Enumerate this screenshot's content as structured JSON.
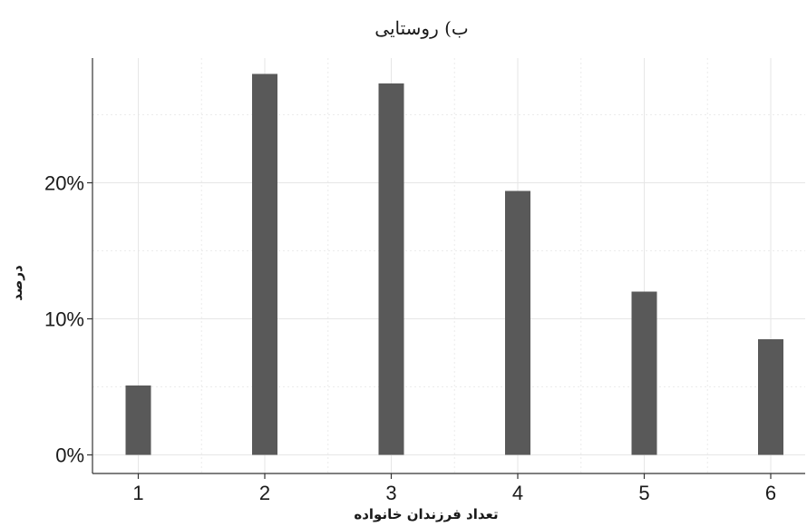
{
  "chart_data": {
    "type": "bar",
    "title": "ب) روستایی",
    "xlabel": "تعداد فرزندان خانواده",
    "ylabel": "درصد",
    "categories": [
      "1",
      "2",
      "3",
      "4",
      "5",
      "6"
    ],
    "values": [
      5.1,
      28.0,
      27.3,
      19.4,
      12.0,
      8.5
    ],
    "ylim": [
      0,
      28
    ],
    "yticks": [
      0,
      10,
      20
    ],
    "ytick_labels": [
      "0%",
      "10%",
      "20%"
    ],
    "grid": true,
    "bar_color": "#595959"
  }
}
